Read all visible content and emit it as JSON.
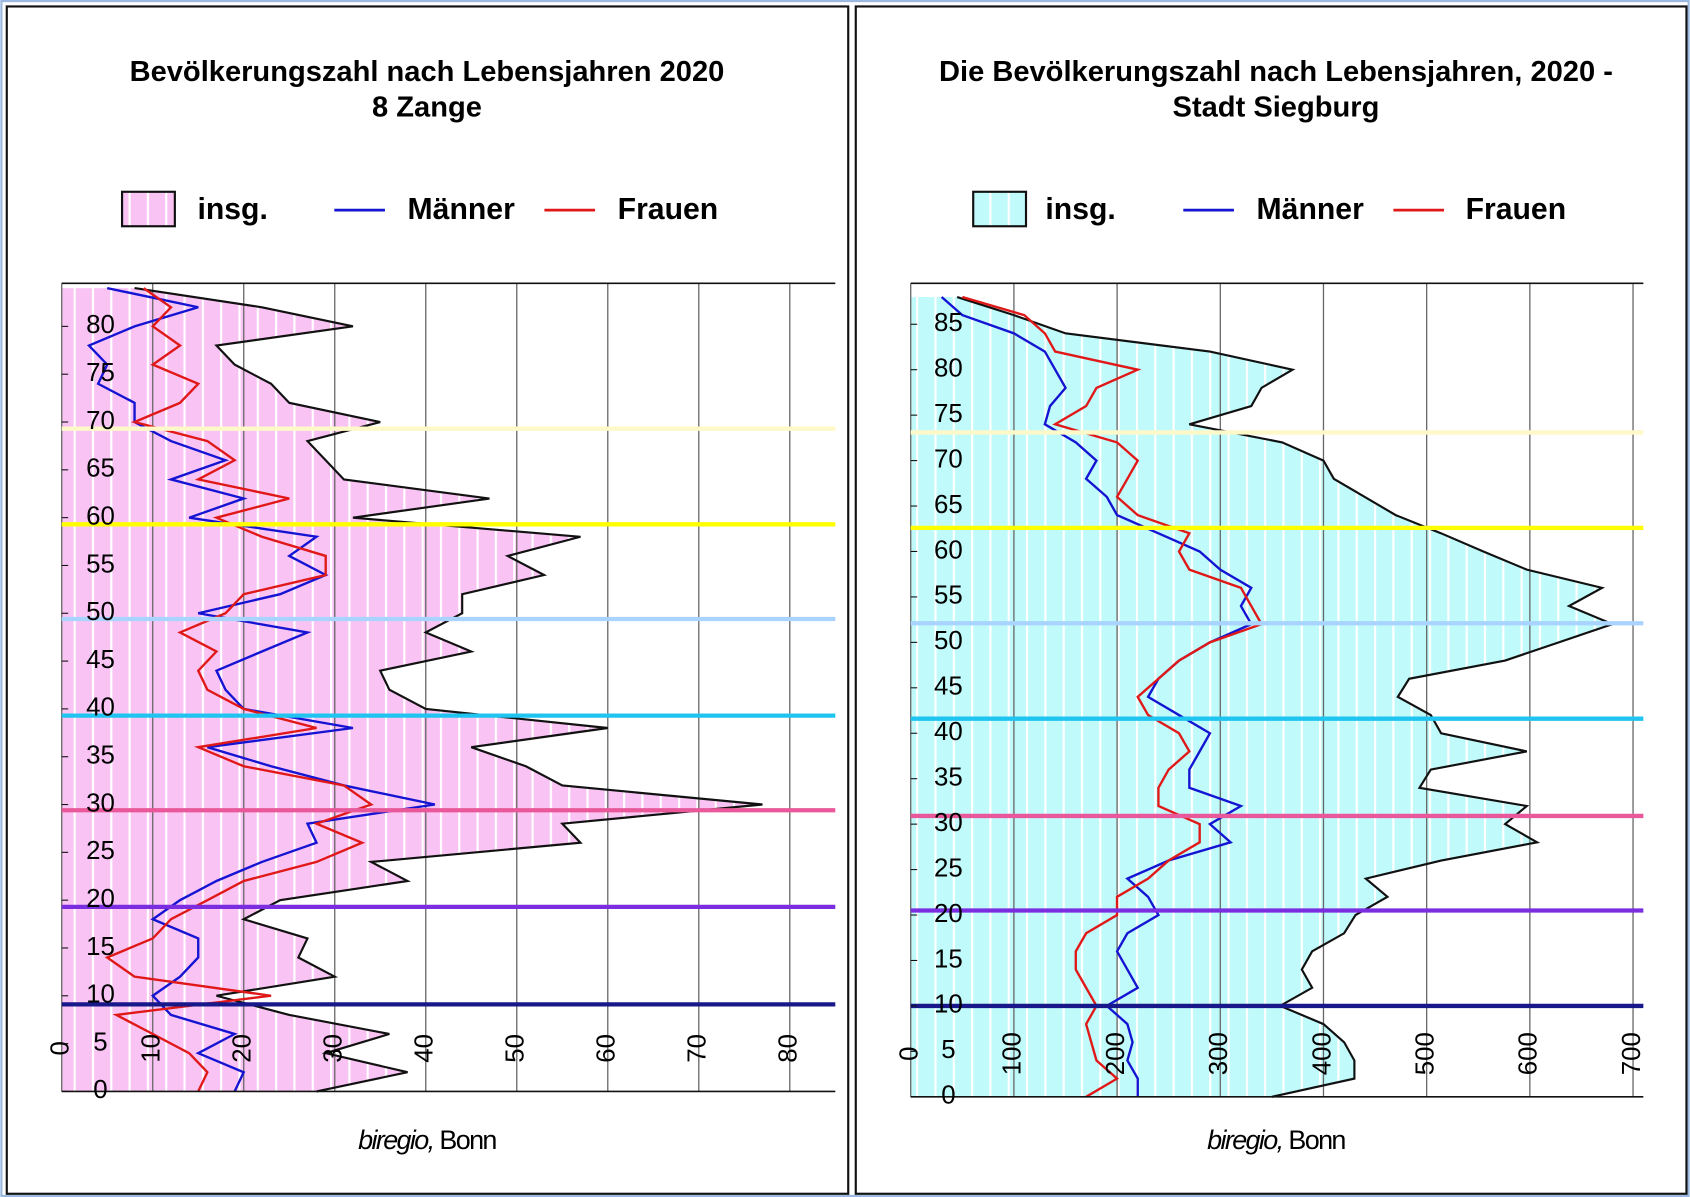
{
  "chart_data": [
    {
      "type": "area_line",
      "orientation": "horizontal",
      "title": [
        "Bevölkerungszahl nach Lebensjahren 2020",
        "8 Zange"
      ],
      "source_org": "biregio,",
      "source_place": "Bonn",
      "x": [
        0,
        2,
        4,
        6,
        8,
        10,
        12,
        14,
        16,
        18,
        20,
        22,
        24,
        26,
        28,
        30,
        32,
        34,
        36,
        38,
        40,
        42,
        44,
        46,
        48,
        50,
        52,
        54,
        56,
        58,
        60,
        62,
        64,
        66,
        68,
        70,
        72,
        74,
        76,
        78,
        80,
        82,
        84
      ],
      "xlim": [
        0,
        84.5
      ],
      "xticks": [
        0,
        5,
        10,
        15,
        20,
        25,
        30,
        35,
        40,
        45,
        50,
        55,
        60,
        65,
        70,
        75,
        80
      ],
      "ylim": [
        0,
        85
      ],
      "yticks": [
        0,
        10,
        20,
        30,
        40,
        50,
        60,
        70,
        80
      ],
      "grid": true,
      "series": [
        {
          "name": "insg.",
          "color": "#f9c4f4",
          "values": [
            28,
            38,
            29,
            36,
            25,
            17,
            30,
            26,
            27,
            20,
            24,
            38,
            34,
            57,
            55,
            77,
            55,
            51,
            45,
            60,
            40,
            36,
            35,
            45,
            40,
            44,
            44,
            53,
            49,
            57,
            32,
            47,
            31,
            29,
            27,
            35,
            25,
            23,
            19,
            17,
            32,
            22,
            8
          ]
        },
        {
          "name": "Männer",
          "color": "#1414d2",
          "values": [
            19,
            20,
            15,
            19,
            12,
            10,
            13,
            15,
            15,
            10,
            13,
            17,
            22,
            28,
            27,
            41,
            31,
            23,
            16,
            32,
            20,
            18,
            17,
            22,
            27,
            15,
            24,
            29,
            25,
            28,
            14,
            20,
            12,
            18,
            12,
            8,
            8,
            4,
            5,
            3,
            8,
            15,
            5
          ]
        },
        {
          "name": "Frauen",
          "color": "#e01818",
          "values": [
            15,
            16,
            14,
            10,
            6,
            23,
            8,
            5,
            10,
            12,
            16,
            20,
            28,
            33,
            28,
            34,
            31,
            20,
            15,
            28,
            20,
            16,
            15,
            17,
            13,
            18,
            20,
            29,
            29,
            22,
            17,
            25,
            15,
            19,
            16,
            8,
            13,
            15,
            10,
            13,
            10,
            12,
            9
          ]
        }
      ],
      "reference_lines": [
        {
          "age": 69.3,
          "color": "#fff8c8"
        },
        {
          "age": 59.3,
          "color": "#ffff00"
        },
        {
          "age": 49.4,
          "color": "#a8d4ff"
        },
        {
          "age": 39.3,
          "color": "#20c4f0"
        },
        {
          "age": 29.4,
          "color": "#e8589a"
        },
        {
          "age": 19.3,
          "color": "#7a2ee0"
        },
        {
          "age": 9.1,
          "color": "#18188a"
        }
      ]
    },
    {
      "type": "area_line",
      "orientation": "horizontal",
      "title": [
        "Die Bevölkerungszahl nach Lebensjahren, 2020 -",
        "Stadt Siegburg"
      ],
      "source_org": "biregio,",
      "source_place": "Bonn",
      "x": [
        0,
        2,
        4,
        6,
        8,
        10,
        12,
        14,
        16,
        18,
        20,
        22,
        24,
        26,
        28,
        30,
        32,
        34,
        36,
        38,
        40,
        42,
        44,
        46,
        48,
        50,
        52,
        54,
        56,
        58,
        60,
        62,
        64,
        66,
        68,
        70,
        72,
        74,
        76,
        78,
        80,
        82,
        84,
        86,
        88
      ],
      "xlim": [
        0,
        89.5
      ],
      "xticks": [
        0,
        5,
        10,
        15,
        20,
        25,
        30,
        35,
        40,
        45,
        50,
        55,
        60,
        65,
        70,
        75,
        80,
        85
      ],
      "ylim": [
        0,
        710
      ],
      "yticks": [
        0,
        100,
        200,
        300,
        400,
        500,
        600,
        700
      ],
      "grid": true,
      "series": [
        {
          "name": "insg.",
          "color": "#c0fafa",
          "values": [
            350,
            430,
            430,
            420,
            400,
            358,
            389,
            379,
            389,
            420,
            431,
            462,
            441,
            514,
            607,
            576,
            597,
            493,
            504,
            597,
            514,
            504,
            472,
            483,
            576,
            628,
            680,
            638,
            670,
            597,
            555,
            514,
            470,
            440,
            410,
            400,
            360,
            270,
            330,
            340,
            370,
            290,
            150,
            100,
            45
          ]
        },
        {
          "name": "Männer",
          "color": "#1414d2",
          "values": [
            220,
            220,
            210,
            215,
            210,
            190,
            220,
            210,
            200,
            210,
            240,
            230,
            210,
            250,
            310,
            290,
            320,
            270,
            270,
            280,
            290,
            260,
            230,
            240,
            260,
            290,
            330,
            320,
            330,
            300,
            280,
            240,
            200,
            190,
            170,
            180,
            160,
            130,
            135,
            150,
            140,
            130,
            100,
            50,
            30
          ]
        },
        {
          "name": "Frauen",
          "color": "#e01818",
          "values": [
            170,
            200,
            180,
            175,
            170,
            180,
            170,
            160,
            160,
            170,
            200,
            200,
            230,
            250,
            280,
            280,
            240,
            240,
            250,
            270,
            260,
            230,
            220,
            240,
            260,
            290,
            340,
            330,
            320,
            270,
            260,
            270,
            220,
            200,
            210,
            220,
            200,
            140,
            170,
            180,
            220,
            140,
            130,
            110,
            50
          ]
        }
      ],
      "reference_lines": [
        {
          "age": 73.1,
          "color": "#fff8c8"
        },
        {
          "age": 62.6,
          "color": "#ffff00"
        },
        {
          "age": 52.1,
          "color": "#a8d4ff"
        },
        {
          "age": 41.6,
          "color": "#20c4f0"
        },
        {
          "age": 30.9,
          "color": "#e8589a"
        },
        {
          "age": 20.5,
          "color": "#7a2ee0"
        },
        {
          "age": 10.0,
          "color": "#18188a"
        }
      ]
    }
  ]
}
